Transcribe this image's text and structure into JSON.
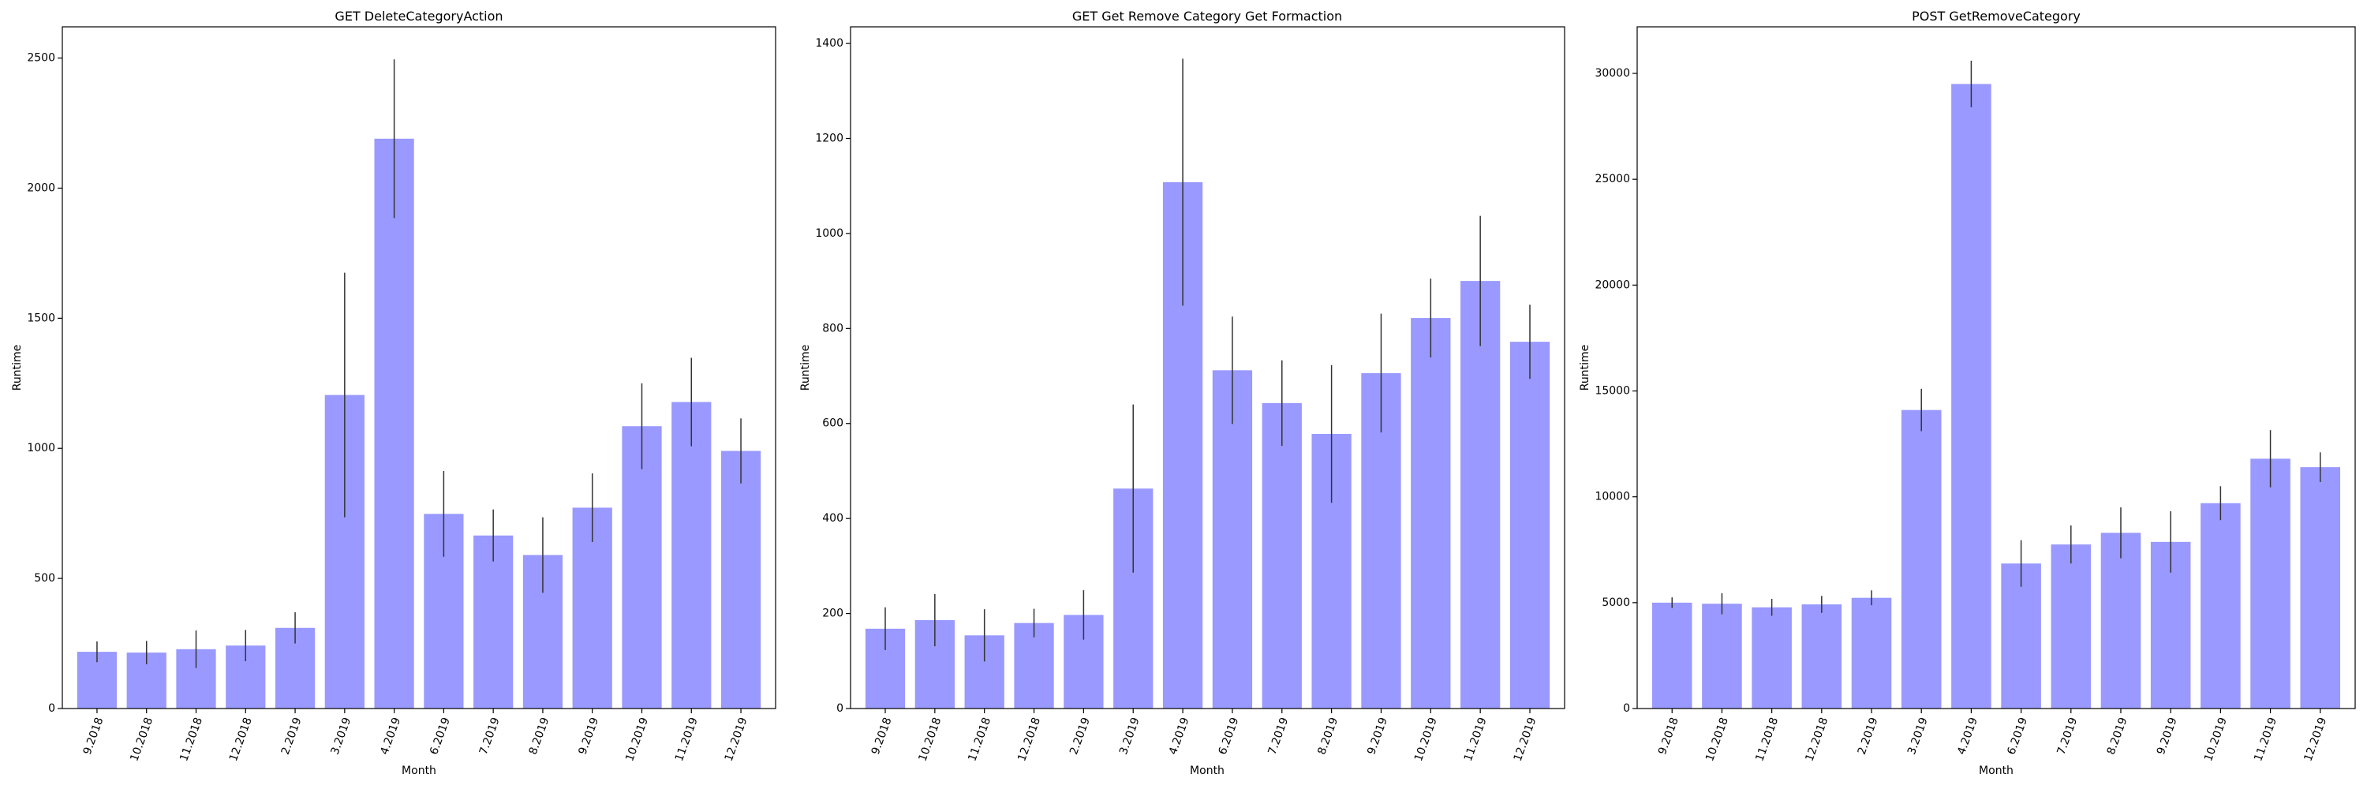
{
  "chart_data": [
    {
      "type": "bar",
      "title": "GET DeleteCategoryAction",
      "xlabel": "Month",
      "ylabel": "Runtime",
      "ylim": [
        0,
        2620
      ],
      "yticks": [
        0,
        500,
        1000,
        1500,
        2000,
        2500
      ],
      "categories": [
        "9.2018",
        "10.2018",
        "11.2018",
        "12.2018",
        "2.2019",
        "3.2019",
        "4.2019",
        "6.2019",
        "7.2019",
        "8.2019",
        "9.2019",
        "10.2019",
        "11.2019",
        "12.2019"
      ],
      "values": [
        218,
        215,
        228,
        242,
        310,
        1205,
        2190,
        748,
        665,
        590,
        772,
        1085,
        1178,
        990
      ],
      "errors": [
        40,
        45,
        72,
        60,
        60,
        470,
        305,
        165,
        100,
        145,
        132,
        165,
        170,
        125
      ],
      "color": "#9999ff",
      "grid": false
    },
    {
      "type": "bar",
      "title": "GET Get Remove Category Get Formaction",
      "xlabel": "Month",
      "ylabel": "Runtime",
      "ylim": [
        0,
        1435
      ],
      "yticks": [
        0,
        200,
        400,
        600,
        800,
        1000,
        1200,
        1400
      ],
      "categories": [
        "9.2018",
        "10.2018",
        "11.2018",
        "12.2018",
        "2.2019",
        "3.2019",
        "4.2019",
        "6.2019",
        "7.2019",
        "8.2019",
        "9.2019",
        "10.2019",
        "11.2019",
        "12.2019"
      ],
      "values": [
        168,
        186,
        154,
        180,
        197,
        463,
        1108,
        712,
        643,
        578,
        706,
        822,
        900,
        772
      ],
      "errors": [
        45,
        55,
        55,
        30,
        52,
        177,
        260,
        113,
        90,
        145,
        125,
        83,
        137,
        78
      ],
      "color": "#9999ff",
      "grid": false
    },
    {
      "type": "bar",
      "title": "POST GetRemoveCategory",
      "xlabel": "Month",
      "ylabel": "Runtime",
      "ylim": [
        0,
        32200
      ],
      "yticks": [
        0,
        5000,
        10000,
        15000,
        20000,
        25000,
        30000
      ],
      "categories": [
        "9.2018",
        "10.2018",
        "11.2018",
        "12.2018",
        "2.2019",
        "3.2019",
        "4.2019",
        "6.2019",
        "7.2019",
        "8.2019",
        "9.2019",
        "10.2019",
        "11.2019",
        "12.2019"
      ],
      "values": [
        5000,
        4950,
        4780,
        4920,
        5230,
        14100,
        29500,
        6850,
        7750,
        8300,
        7870,
        9700,
        11800,
        11400
      ],
      "errors": [
        250,
        500,
        400,
        400,
        350,
        1000,
        1100,
        1100,
        900,
        1200,
        1450,
        800,
        1350,
        700
      ],
      "color": "#9999ff",
      "grid": false
    }
  ]
}
